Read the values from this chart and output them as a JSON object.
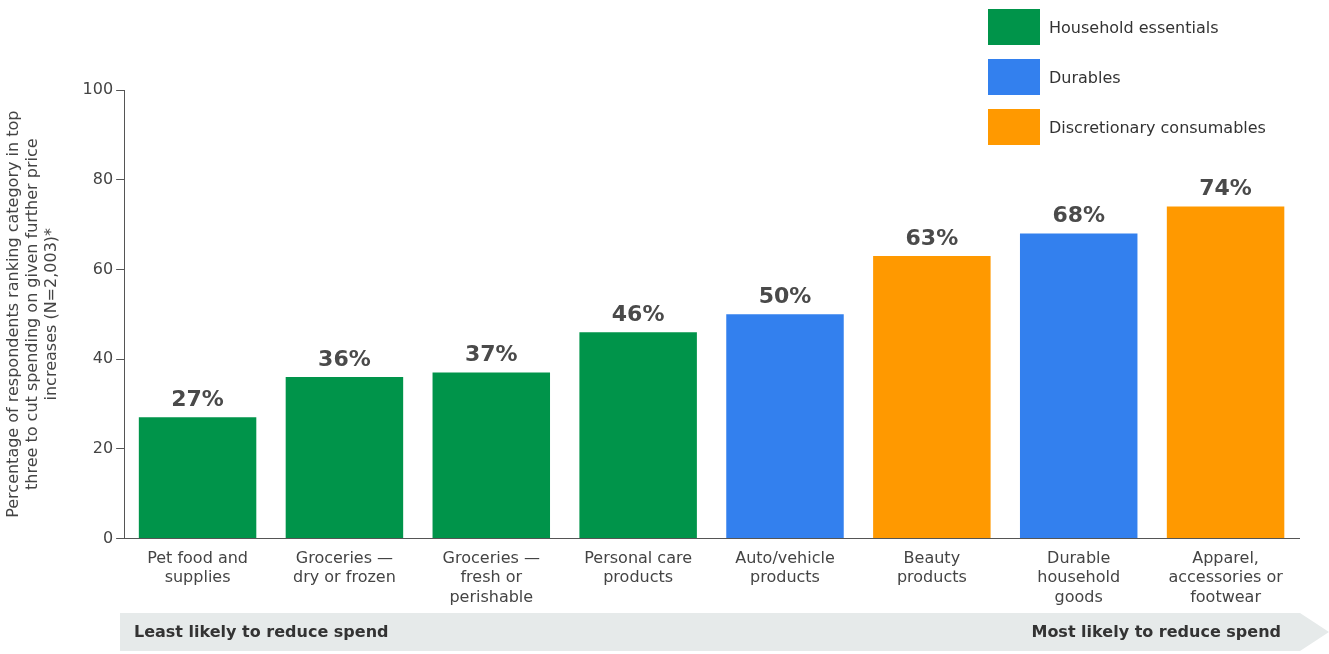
{
  "chart_data": {
    "type": "bar",
    "ylabel": "Percentage of respondents ranking category in top three to cut spending on given further price increases (N=2,003)*",
    "categories": [
      "Pet food and supplies",
      "Groceries — dry or frozen",
      "Groceries — fresh or perishable",
      "Personal care products",
      "Auto/vehicle products",
      "Beauty products",
      "Durable household goods",
      "Apparel, accessories or footwear"
    ],
    "series": [
      {
        "name": "Household essentials",
        "color": "#00944a",
        "values": [
          27,
          36,
          37,
          46,
          null,
          null,
          null,
          null
        ],
        "value_labels": [
          "27%",
          "36%",
          "37%",
          "46%",
          null,
          null,
          null,
          null
        ]
      },
      {
        "name": "Durables",
        "color": "#3380ee",
        "values": [
          null,
          null,
          null,
          null,
          50,
          null,
          68,
          null
        ],
        "value_labels": [
          null,
          null,
          null,
          null,
          "50%",
          null,
          "68%",
          null
        ]
      },
      {
        "name": "Discretionary consumables",
        "color": "#ff9900",
        "values": [
          null,
          null,
          null,
          null,
          null,
          63,
          null,
          74
        ],
        "value_labels": [
          null,
          null,
          null,
          null,
          null,
          "63%",
          null,
          "74%"
        ]
      }
    ],
    "ylim": [
      0,
      100
    ],
    "yticks": [
      0,
      20,
      40,
      60,
      80,
      100
    ],
    "grid": false,
    "legend": "top right",
    "annotations": [
      "Least likely to reduce spend",
      "Most likely to reduce spend"
    ]
  }
}
